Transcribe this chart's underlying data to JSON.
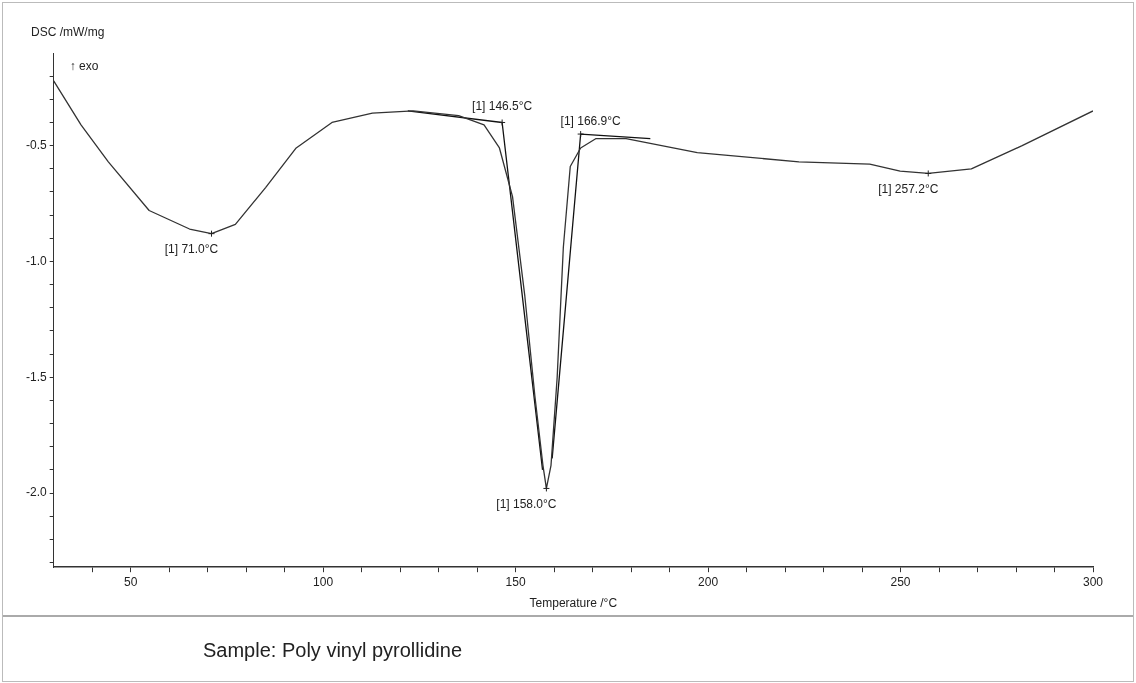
{
  "chart_data": {
    "type": "line",
    "xlabel": "Temperature /°C",
    "ylabel": "DSC /mW/mg",
    "xlim": [
      30,
      300
    ],
    "ylim": [
      -2.32,
      -0.1
    ],
    "xticks": [
      {
        "value": 40,
        "label": null
      },
      50,
      {
        "value": 60,
        "label": null
      },
      {
        "value": 70,
        "label": null
      },
      {
        "value": 80,
        "label": null
      },
      {
        "value": 90,
        "label": null
      },
      100,
      {
        "value": 110,
        "label": null
      },
      {
        "value": 120,
        "label": null
      },
      {
        "value": 130,
        "label": null
      },
      {
        "value": 140,
        "label": null
      },
      150,
      {
        "value": 160,
        "label": null
      },
      {
        "value": 170,
        "label": null
      },
      {
        "value": 180,
        "label": null
      },
      {
        "value": 190,
        "label": null
      },
      200,
      {
        "value": 210,
        "label": null
      },
      {
        "value": 220,
        "label": null
      },
      {
        "value": 230,
        "label": null
      },
      {
        "value": 240,
        "label": null
      },
      250,
      {
        "value": 260,
        "label": null
      },
      {
        "value": 270,
        "label": null
      },
      {
        "value": 280,
        "label": null
      },
      {
        "value": 290,
        "label": null
      },
      300
    ],
    "yticks": [
      {
        "value": -2.3,
        "label": null
      },
      {
        "value": -2.2,
        "label": null
      },
      {
        "value": -2.1,
        "label": null
      },
      {
        "value": -2.0,
        "label": "-2.0"
      },
      {
        "value": -1.9,
        "label": null
      },
      {
        "value": -1.8,
        "label": null
      },
      {
        "value": -1.7,
        "label": null
      },
      {
        "value": -1.6,
        "label": null
      },
      -1.5,
      {
        "value": -1.4,
        "label": null
      },
      {
        "value": -1.3,
        "label": null
      },
      {
        "value": -1.2,
        "label": null
      },
      {
        "value": -1.1,
        "label": null
      },
      {
        "value": -1.0,
        "label": "-1.0"
      },
      {
        "value": -0.9,
        "label": null
      },
      {
        "value": -0.8,
        "label": null
      },
      {
        "value": -0.7,
        "label": null
      },
      {
        "value": -0.6,
        "label": null
      },
      -0.5,
      {
        "value": -0.4,
        "label": null
      },
      {
        "value": -0.3,
        "label": null
      },
      {
        "value": -0.2,
        "label": null
      }
    ],
    "grid": false,
    "legend": false,
    "marker": "none",
    "line_style": "solid",
    "series": [
      {
        "color": "#333333",
        "x": [
          30,
          37.1,
          44.2,
          54.8,
          65.3,
          71.0,
          77.2,
          85.1,
          93.0,
          102.3,
          112.8,
          123.4,
          135.2,
          141.8,
          145.8,
          149.2,
          152.4,
          155.0,
          157.1,
          158.0,
          159.2,
          160.8,
          162.4,
          164.2,
          166.9,
          170.8,
          178.7,
          197.2,
          223.6,
          242.0,
          249.9,
          257.2,
          268.4,
          281.6,
          300
        ],
        "values": [
          -0.22,
          -0.41,
          -0.57,
          -0.78,
          -0.86,
          -0.88,
          -0.84,
          -0.68,
          -0.51,
          -0.4,
          -0.36,
          -0.35,
          -0.37,
          -0.41,
          -0.51,
          -0.72,
          -1.15,
          -1.58,
          -1.88,
          -1.98,
          -1.88,
          -1.5,
          -0.94,
          -0.59,
          -0.51,
          -0.47,
          -0.47,
          -0.53,
          -0.57,
          -0.58,
          -0.61,
          -0.62,
          -0.6,
          -0.5,
          -0.35
        ]
      },
      {
        "color": "#111111",
        "x": [
          122,
          146.5,
          157
        ],
        "values": [
          -0.35,
          -0.4,
          -1.9
        ]
      },
      {
        "color": "#111111",
        "x": [
          159.5,
          166.9,
          185
        ],
        "values": [
          -1.85,
          -0.45,
          -0.47
        ]
      }
    ],
    "annotations": [
      {
        "text": "[1] 71.0°C",
        "x": 71.0,
        "y": -0.88
      },
      {
        "text": "[1] 146.5°C",
        "x": 146.5,
        "y": -0.4
      },
      {
        "text": "[1] 158.0°C",
        "x": 158.0,
        "y": -1.98
      },
      {
        "text": "[1] 166.9°C",
        "x": 166.9,
        "y": -0.45
      },
      {
        "text": "[1] 257.2°C",
        "x": 257.2,
        "y": -0.62
      },
      "↑ exo",
      "Sample: Poly vinyl pyrollidine"
    ]
  }
}
